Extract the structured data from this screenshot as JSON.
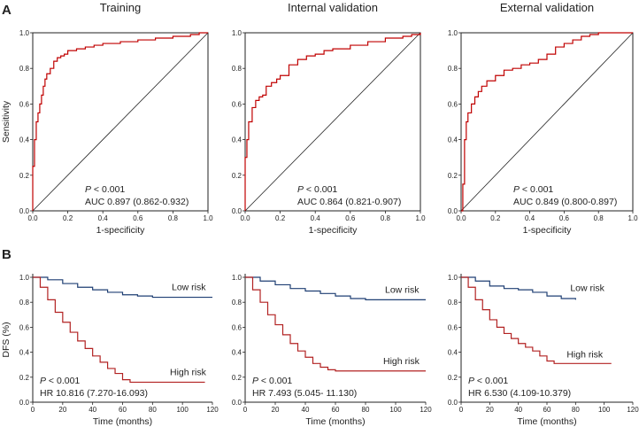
{
  "panel_labels": {
    "a": "A",
    "b": "B"
  },
  "colors": {
    "roc": "#c00000",
    "high_risk": "#b22222",
    "low_risk": "#1f3f73",
    "diagonal": "#222222",
    "axis": "#222222"
  },
  "chart_data": [
    {
      "type": "line",
      "id": "roc-training",
      "title": "Training",
      "xlabel": "1-specificity",
      "ylabel": "Sensitivity",
      "xlim": [
        0,
        1
      ],
      "ylim": [
        0,
        1
      ],
      "xticks": [
        "0.0",
        "0.2",
        "0.4",
        "0.6",
        "0.8",
        "1.0"
      ],
      "yticks": [
        "0.0",
        "0.2",
        "0.4",
        "0.6",
        "0.8",
        "1.0"
      ],
      "p_label": "P",
      "p_text": " < 0.001",
      "stat_text": "AUC 0.897 (0.862-0.932)",
      "series": [
        {
          "name": "ROC",
          "x": [
            0,
            0,
            0.01,
            0.02,
            0.03,
            0.04,
            0.05,
            0.06,
            0.07,
            0.08,
            0.1,
            0.12,
            0.14,
            0.16,
            0.18,
            0.2,
            0.25,
            0.3,
            0.35,
            0.4,
            0.5,
            0.6,
            0.7,
            0.8,
            0.9,
            0.95,
            1.0
          ],
          "y": [
            0,
            0.25,
            0.4,
            0.5,
            0.55,
            0.6,
            0.65,
            0.7,
            0.74,
            0.77,
            0.8,
            0.84,
            0.86,
            0.87,
            0.88,
            0.9,
            0.91,
            0.92,
            0.93,
            0.94,
            0.95,
            0.96,
            0.97,
            0.98,
            0.99,
            1.0,
            1.0
          ]
        }
      ]
    },
    {
      "type": "line",
      "id": "roc-internal",
      "title": "Internal validation",
      "xlabel": "1-specificity",
      "ylabel": "",
      "xlim": [
        0,
        1
      ],
      "ylim": [
        0,
        1
      ],
      "xticks": [
        "0.0",
        "0.2",
        "0.4",
        "0.6",
        "0.8",
        "1.0"
      ],
      "yticks": [
        "0.0",
        "0.2",
        "0.4",
        "0.6",
        "0.8",
        "1.0"
      ],
      "p_label": "P",
      "p_text": " < 0.001",
      "stat_text": "AUC 0.864 (0.821-0.907)",
      "series": [
        {
          "name": "ROC",
          "x": [
            0,
            0,
            0.01,
            0.02,
            0.04,
            0.06,
            0.08,
            0.1,
            0.12,
            0.15,
            0.18,
            0.2,
            0.25,
            0.3,
            0.35,
            0.4,
            0.45,
            0.5,
            0.6,
            0.7,
            0.8,
            0.9,
            0.95,
            1.0
          ],
          "y": [
            0,
            0.3,
            0.4,
            0.5,
            0.58,
            0.62,
            0.64,
            0.65,
            0.7,
            0.72,
            0.74,
            0.76,
            0.82,
            0.85,
            0.87,
            0.88,
            0.9,
            0.91,
            0.93,
            0.95,
            0.97,
            0.98,
            0.99,
            1.0
          ]
        }
      ]
    },
    {
      "type": "line",
      "id": "roc-external",
      "title": "External validation",
      "xlabel": "1-specificity",
      "ylabel": "",
      "xlim": [
        0,
        1
      ],
      "ylim": [
        0,
        1
      ],
      "xticks": [
        "0.0",
        "0.2",
        "0.4",
        "0.6",
        "0.8",
        "1.0"
      ],
      "yticks": [
        "0.0",
        "0.2",
        "0.4",
        "0.6",
        "0.8",
        "1.0"
      ],
      "p_label": "P",
      "p_text": " < 0.001",
      "stat_text": "AUC 0.849 (0.800-0.897)",
      "series": [
        {
          "name": "ROC",
          "x": [
            0,
            0.01,
            0.02,
            0.03,
            0.04,
            0.06,
            0.08,
            0.1,
            0.12,
            0.15,
            0.2,
            0.25,
            0.3,
            0.35,
            0.4,
            0.45,
            0.5,
            0.55,
            0.6,
            0.65,
            0.7,
            0.75,
            0.8,
            0.9,
            1.0
          ],
          "y": [
            0,
            0.15,
            0.4,
            0.5,
            0.55,
            0.6,
            0.64,
            0.67,
            0.7,
            0.73,
            0.76,
            0.79,
            0.8,
            0.82,
            0.83,
            0.85,
            0.88,
            0.92,
            0.94,
            0.96,
            0.98,
            0.99,
            1.0,
            1.0,
            1.0
          ]
        }
      ]
    },
    {
      "type": "line",
      "id": "km-training",
      "xlabel": "Time (months)",
      "ylabel": "DFS (%)",
      "xlim": [
        0,
        120
      ],
      "ylim": [
        0,
        1
      ],
      "xticks": [
        "0",
        "20",
        "40",
        "60",
        "80",
        "100",
        "120"
      ],
      "yticks": [
        "0.0",
        "0.2",
        "0.4",
        "0.6",
        "0.8",
        "1.0"
      ],
      "p_label": "P",
      "p_text": " < 0.001",
      "stat_text": "HR 10.816 (7.270-16.093)",
      "series": [
        {
          "name": "Low risk",
          "x": [
            0,
            10,
            20,
            30,
            40,
            50,
            60,
            70,
            80,
            90,
            100,
            110,
            120
          ],
          "y": [
            1.0,
            0.98,
            0.95,
            0.92,
            0.9,
            0.88,
            0.86,
            0.85,
            0.84,
            0.84,
            0.84,
            0.84,
            0.84
          ]
        },
        {
          "name": "High risk",
          "x": [
            0,
            5,
            10,
            15,
            20,
            25,
            30,
            35,
            40,
            45,
            50,
            55,
            60,
            65,
            70,
            80,
            90,
            100,
            110,
            115
          ],
          "y": [
            1.0,
            0.92,
            0.82,
            0.72,
            0.64,
            0.56,
            0.49,
            0.43,
            0.37,
            0.32,
            0.27,
            0.23,
            0.18,
            0.16,
            0.16,
            0.16,
            0.16,
            0.16,
            0.16,
            0.16
          ]
        }
      ]
    },
    {
      "type": "line",
      "id": "km-internal",
      "xlabel": "Time (months)",
      "ylabel": "",
      "xlim": [
        0,
        120
      ],
      "ylim": [
        0,
        1
      ],
      "xticks": [
        "0",
        "20",
        "40",
        "60",
        "80",
        "100",
        "120"
      ],
      "yticks": [
        "0.0",
        "0.2",
        "0.4",
        "0.6",
        "0.8",
        "1.0"
      ],
      "p_label": "P",
      "p_text": " < 0.001",
      "stat_text": "HR 7.493 (5.045- 11.130)",
      "series": [
        {
          "name": "Low risk",
          "x": [
            0,
            10,
            20,
            30,
            40,
            50,
            60,
            70,
            80,
            90,
            100,
            110,
            120
          ],
          "y": [
            1.0,
            0.97,
            0.94,
            0.91,
            0.89,
            0.87,
            0.85,
            0.83,
            0.82,
            0.82,
            0.82,
            0.82,
            0.82
          ]
        },
        {
          "name": "High risk",
          "x": [
            0,
            5,
            10,
            15,
            20,
            25,
            30,
            35,
            40,
            45,
            50,
            55,
            60,
            65,
            70,
            80,
            90,
            100,
            110,
            120
          ],
          "y": [
            1.0,
            0.9,
            0.8,
            0.7,
            0.62,
            0.54,
            0.47,
            0.41,
            0.36,
            0.31,
            0.28,
            0.26,
            0.25,
            0.25,
            0.25,
            0.25,
            0.25,
            0.25,
            0.25,
            0.25
          ]
        }
      ]
    },
    {
      "type": "line",
      "id": "km-external",
      "xlabel": "Time (months)",
      "ylabel": "",
      "xlim": [
        0,
        120
      ],
      "ylim": [
        0,
        1
      ],
      "xticks": [
        "0",
        "20",
        "40",
        "60",
        "80",
        "100",
        "120"
      ],
      "yticks": [
        "0.0",
        "0.2",
        "0.4",
        "0.6",
        "0.8",
        "1.0"
      ],
      "p_label": "P",
      "p_text": " < 0.001",
      "stat_text": "HR 6.530 (4.109-10.379)",
      "series": [
        {
          "name": "Low risk",
          "x": [
            0,
            10,
            20,
            30,
            40,
            50,
            60,
            70,
            80
          ],
          "y": [
            1.0,
            0.97,
            0.93,
            0.91,
            0.9,
            0.88,
            0.85,
            0.83,
            0.82
          ]
        },
        {
          "name": "High risk",
          "x": [
            0,
            5,
            10,
            15,
            20,
            25,
            30,
            35,
            40,
            45,
            50,
            55,
            60,
            65,
            70,
            80,
            90,
            100,
            105
          ],
          "y": [
            1.0,
            0.92,
            0.82,
            0.74,
            0.66,
            0.6,
            0.55,
            0.51,
            0.47,
            0.44,
            0.41,
            0.37,
            0.33,
            0.31,
            0.31,
            0.31,
            0.31,
            0.31,
            0.31
          ]
        }
      ]
    }
  ]
}
